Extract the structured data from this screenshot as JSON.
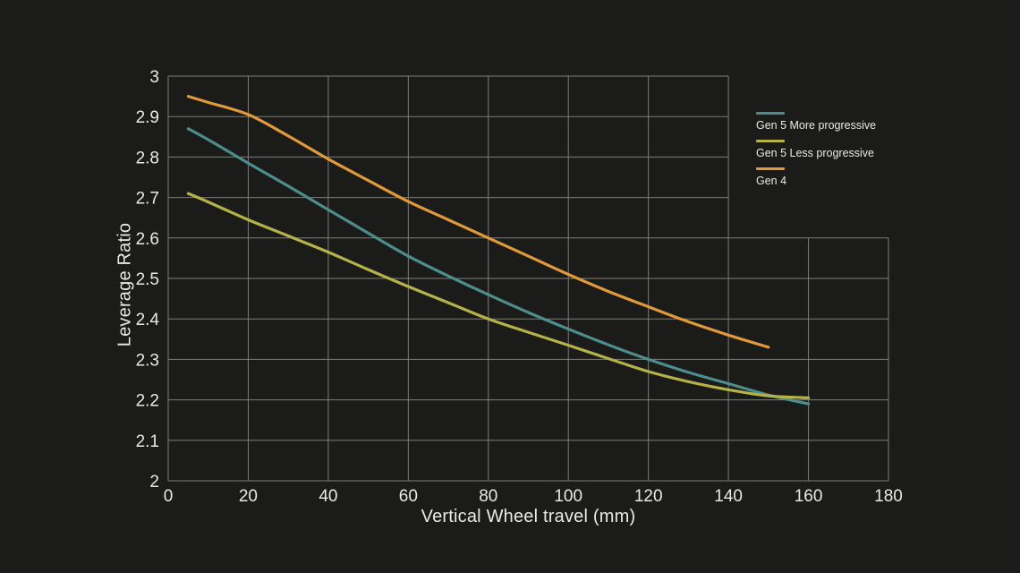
{
  "page": {
    "background_color": "#1b1b19",
    "text_color": "#e9e9e7",
    "grid_color": "#7d7d78"
  },
  "chart_data": {
    "type": "line",
    "title": "",
    "xlabel": "Vertical Wheel travel (mm)",
    "ylabel": "Leverage Ratio",
    "xlim": [
      0,
      180
    ],
    "ylim": [
      2,
      3
    ],
    "x_ticks": [
      0,
      20,
      40,
      60,
      80,
      100,
      120,
      140,
      160,
      180
    ],
    "x_tick_labels": [
      "0",
      "20",
      "40",
      "60",
      "80",
      "100",
      "120",
      "140",
      "160",
      "180"
    ],
    "y_ticks": [
      2,
      2.1,
      2.2,
      2.3,
      2.4,
      2.5,
      2.6,
      2.7,
      2.8,
      2.9,
      3
    ],
    "y_tick_labels": [
      "2",
      "2.1",
      "2.2",
      "2.3",
      "2.4",
      "2.5",
      "2.6",
      "2.7",
      "2.8",
      "2.9",
      "3"
    ],
    "grid": true,
    "grid_cutout_note": "grid is omitted in the upper-right region where x > 140 and y > 2.6 (legend sits there)",
    "grid_cutout": {
      "x_above": 140,
      "y_above": 2.6
    },
    "legend_position": "upper-right cutout",
    "series": [
      {
        "name": "Gen 5 More progressive",
        "color": "#4D8E8C",
        "x": [
          5,
          10,
          20,
          30,
          40,
          50,
          60,
          70,
          80,
          90,
          100,
          110,
          120,
          130,
          140,
          150,
          160
        ],
        "y": [
          2.87,
          2.843,
          2.785,
          2.728,
          2.67,
          2.612,
          2.555,
          2.506,
          2.46,
          2.416,
          2.375,
          2.336,
          2.3,
          2.268,
          2.24,
          2.212,
          2.19
        ]
      },
      {
        "name": "Gen 5 Less progressive",
        "color": "#B4B248",
        "x": [
          5,
          10,
          20,
          30,
          40,
          50,
          60,
          70,
          80,
          90,
          100,
          110,
          120,
          130,
          140,
          150,
          160
        ],
        "y": [
          2.71,
          2.689,
          2.645,
          2.605,
          2.565,
          2.522,
          2.48,
          2.44,
          2.4,
          2.367,
          2.335,
          2.302,
          2.27,
          2.245,
          2.225,
          2.21,
          2.205
        ]
      },
      {
        "name": "Gen 4",
        "color": "#E09A3C",
        "x": [
          5,
          10,
          20,
          30,
          40,
          50,
          60,
          70,
          80,
          90,
          100,
          110,
          120,
          130,
          140,
          150
        ],
        "y": [
          2.95,
          2.935,
          2.905,
          2.852,
          2.795,
          2.742,
          2.69,
          2.645,
          2.6,
          2.555,
          2.51,
          2.468,
          2.43,
          2.393,
          2.36,
          2.33
        ]
      }
    ]
  }
}
